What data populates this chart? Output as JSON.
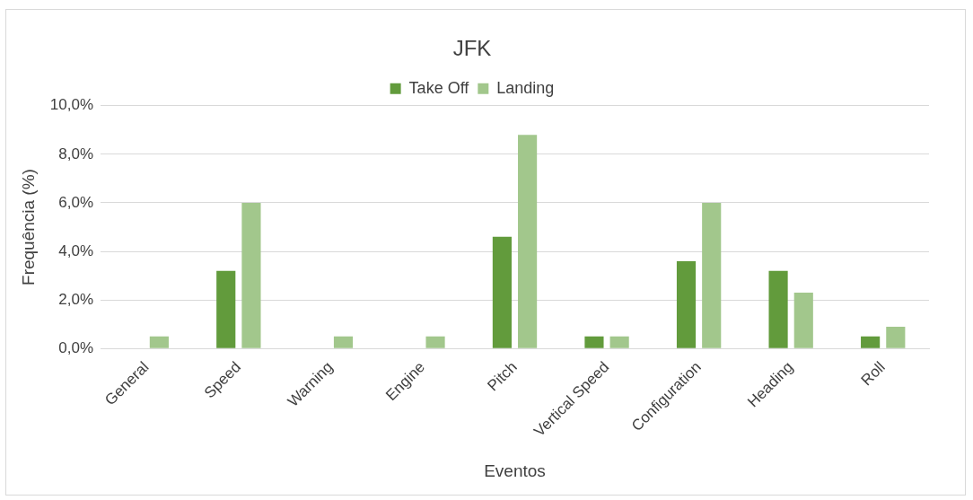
{
  "chart_data": {
    "type": "bar",
    "title": "JFK",
    "xlabel": "Eventos",
    "ylabel": "Frequência (%)",
    "categories": [
      "General",
      "Speed",
      "Warning",
      "Engine",
      "Pitch",
      "Vertical Speed",
      "Configuration",
      "Heading",
      "Roll"
    ],
    "series": [
      {
        "name": "Take Off",
        "color": "#629b3c",
        "values": [
          0,
          3.2,
          0,
          0,
          4.6,
          0.5,
          3.6,
          3.2,
          0.5
        ]
      },
      {
        "name": "Landing",
        "color": "#a2c78c",
        "values": [
          0.5,
          6.0,
          0.5,
          0.5,
          8.8,
          0.5,
          6.0,
          2.3,
          0.9
        ]
      }
    ],
    "ylim": [
      0,
      10
    ],
    "yticks": [
      {
        "value": 0,
        "label": "0,0%"
      },
      {
        "value": 2,
        "label": "2,0%"
      },
      {
        "value": 4,
        "label": "4,0%"
      },
      {
        "value": 6,
        "label": "6,0%"
      },
      {
        "value": 8,
        "label": "8,0%"
      },
      {
        "value": 10,
        "label": "10,0%"
      }
    ],
    "grid": "y",
    "legend": "top"
  }
}
